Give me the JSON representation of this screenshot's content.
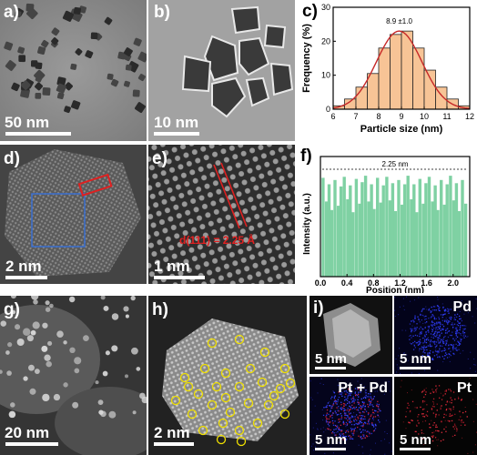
{
  "panels": {
    "a": {
      "label": "a)",
      "scale": "50 nm"
    },
    "b": {
      "label": "b)",
      "scale": "10 nm"
    },
    "c": {
      "label": "c)"
    },
    "d": {
      "label": "d)",
      "scale": "2 nm"
    },
    "e": {
      "label": "e)",
      "scale": "1 nm",
      "annotation": "d(111) = 2.25 Å"
    },
    "f": {
      "label": "f)"
    },
    "g": {
      "label": "g)",
      "scale": "20 nm"
    },
    "h": {
      "label": "h)",
      "scale": "2 nm"
    },
    "i": {
      "label": "i)",
      "tiles": [
        {
          "element": "",
          "scale": "5 nm"
        },
        {
          "element": "Pd",
          "scale": "5 nm"
        },
        {
          "element": "Pt + Pd",
          "scale": "5 nm"
        },
        {
          "element": "Pt",
          "scale": "5 nm"
        }
      ]
    }
  },
  "chart_data": [
    {
      "type": "bar",
      "panel": "c",
      "xlabel": "Particle size (nm)",
      "ylabel": "Frequency (%)",
      "xlim": [
        6,
        12
      ],
      "ylim": [
        0,
        30
      ],
      "xticks": [
        6,
        7,
        8,
        9,
        10,
        11,
        12
      ],
      "yticks": [
        0,
        10,
        20,
        30
      ],
      "annotation": "8.9 ±1.0",
      "bar_color": "#f7c496",
      "fit_color": "#c62828",
      "bins": [
        {
          "x0": 6.0,
          "x1": 6.5,
          "value": 1
        },
        {
          "x0": 6.5,
          "x1": 7.0,
          "value": 3
        },
        {
          "x0": 7.0,
          "x1": 7.5,
          "value": 6.5
        },
        {
          "x0": 7.5,
          "x1": 8.0,
          "value": 10.5
        },
        {
          "x0": 8.0,
          "x1": 8.5,
          "value": 18
        },
        {
          "x0": 8.5,
          "x1": 9.0,
          "value": 22
        },
        {
          "x0": 9.0,
          "x1": 9.5,
          "value": 23
        },
        {
          "x0": 9.5,
          "x1": 10.0,
          "value": 18
        },
        {
          "x0": 10.0,
          "x1": 10.5,
          "value": 11.5
        },
        {
          "x0": 10.5,
          "x1": 11.0,
          "value": 6.5
        },
        {
          "x0": 11.0,
          "x1": 11.5,
          "value": 3
        },
        {
          "x0": 11.5,
          "x1": 12.0,
          "value": 1
        }
      ],
      "fit": {
        "mean": 8.9,
        "sd": 1.0,
        "peak": 23
      }
    },
    {
      "type": "bar",
      "panel": "f",
      "xlabel": "Position (nm)",
      "ylabel": "Intensity (a.u.)",
      "xlim": [
        0,
        2.25
      ],
      "xticks": [
        0.0,
        0.4,
        0.8,
        1.2,
        1.6,
        2.0
      ],
      "xtick_labels": [
        "0.0",
        "0.4",
        "0.8",
        "1.2",
        "1.6",
        "2.0"
      ],
      "span_label": "2.25 nm",
      "bar_color": "#7fd1a3",
      "profile": [
        {
          "x": 0.04,
          "v": 0.92
        },
        {
          "x": 0.09,
          "v": 0.7
        },
        {
          "x": 0.13,
          "v": 0.86
        },
        {
          "x": 0.17,
          "v": 0.62
        },
        {
          "x": 0.22,
          "v": 0.9
        },
        {
          "x": 0.27,
          "v": 0.66
        },
        {
          "x": 0.31,
          "v": 0.84
        },
        {
          "x": 0.36,
          "v": 0.93
        },
        {
          "x": 0.41,
          "v": 0.72
        },
        {
          "x": 0.45,
          "v": 0.85
        },
        {
          "x": 0.49,
          "v": 0.6
        },
        {
          "x": 0.54,
          "v": 0.91
        },
        {
          "x": 0.59,
          "v": 0.68
        },
        {
          "x": 0.63,
          "v": 0.88
        },
        {
          "x": 0.68,
          "v": 0.94
        },
        {
          "x": 0.73,
          "v": 0.7
        },
        {
          "x": 0.77,
          "v": 0.86
        },
        {
          "x": 0.81,
          "v": 0.63
        },
        {
          "x": 0.86,
          "v": 0.92
        },
        {
          "x": 0.91,
          "v": 0.69
        },
        {
          "x": 0.95,
          "v": 0.85
        },
        {
          "x": 1.0,
          "v": 0.93
        },
        {
          "x": 1.05,
          "v": 0.71
        },
        {
          "x": 1.09,
          "v": 0.87
        },
        {
          "x": 1.13,
          "v": 0.61
        },
        {
          "x": 1.18,
          "v": 0.9
        },
        {
          "x": 1.23,
          "v": 0.67
        },
        {
          "x": 1.27,
          "v": 0.86
        },
        {
          "x": 1.32,
          "v": 0.94
        },
        {
          "x": 1.37,
          "v": 0.72
        },
        {
          "x": 1.41,
          "v": 0.86
        },
        {
          "x": 1.45,
          "v": 0.6
        },
        {
          "x": 1.5,
          "v": 0.91
        },
        {
          "x": 1.55,
          "v": 0.68
        },
        {
          "x": 1.59,
          "v": 0.87
        },
        {
          "x": 1.64,
          "v": 0.93
        },
        {
          "x": 1.69,
          "v": 0.7
        },
        {
          "x": 1.73,
          "v": 0.85
        },
        {
          "x": 1.77,
          "v": 0.62
        },
        {
          "x": 1.82,
          "v": 0.9
        },
        {
          "x": 1.87,
          "v": 0.67
        },
        {
          "x": 1.91,
          "v": 0.86
        },
        {
          "x": 1.96,
          "v": 0.94
        },
        {
          "x": 2.01,
          "v": 0.71
        },
        {
          "x": 2.05,
          "v": 0.87
        },
        {
          "x": 2.09,
          "v": 0.61
        },
        {
          "x": 2.14,
          "v": 0.9
        },
        {
          "x": 2.19,
          "v": 0.68
        }
      ]
    }
  ]
}
